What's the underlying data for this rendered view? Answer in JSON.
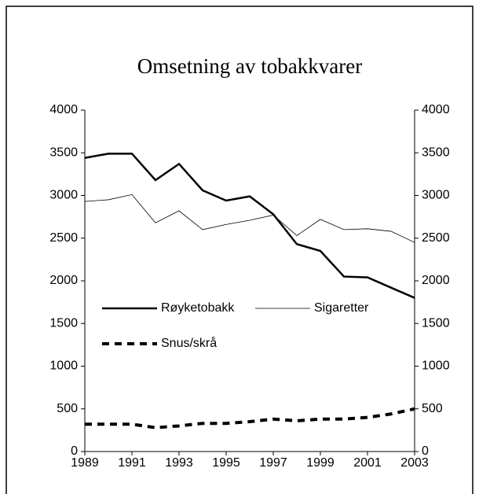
{
  "chart_data": {
    "type": "line",
    "title": "Omsetning av tobakkvarer",
    "x": [
      1989,
      1990,
      1991,
      1992,
      1993,
      1994,
      1995,
      1996,
      1997,
      1998,
      1999,
      2000,
      2001,
      2002,
      2003
    ],
    "series": [
      {
        "name": "Røyketobakk",
        "color": "#000000",
        "values": [
          3440,
          3490,
          3490,
          3180,
          3370,
          3060,
          2940,
          2990,
          2780,
          2430,
          2350,
          2050,
          2040,
          1920,
          1800
        ]
      },
      {
        "name": "Sigaretter",
        "color": "#000000",
        "values": [
          2930,
          2950,
          3010,
          2680,
          2820,
          2600,
          2660,
          2710,
          2770,
          2530,
          2720,
          2600,
          2610,
          2580,
          2450
        ]
      },
      {
        "name": "Snus/skrå",
        "color": "#000000",
        "values": [
          320,
          320,
          320,
          280,
          300,
          330,
          330,
          350,
          380,
          360,
          380,
          380,
          400,
          440,
          500
        ]
      }
    ],
    "xlim": [
      1989,
      2003
    ],
    "xticks": [
      1989,
      1991,
      1993,
      1995,
      1997,
      1999,
      2001,
      2003
    ],
    "ylim": [
      0,
      4000
    ],
    "yticks": [
      0,
      500,
      1000,
      1500,
      2000,
      2500,
      3000,
      3500,
      4000
    ],
    "y2lim": [
      0,
      4000
    ],
    "y2ticks": [
      0,
      500,
      1000,
      1500,
      2000,
      2500,
      3000,
      3500,
      4000
    ],
    "grid": false
  }
}
